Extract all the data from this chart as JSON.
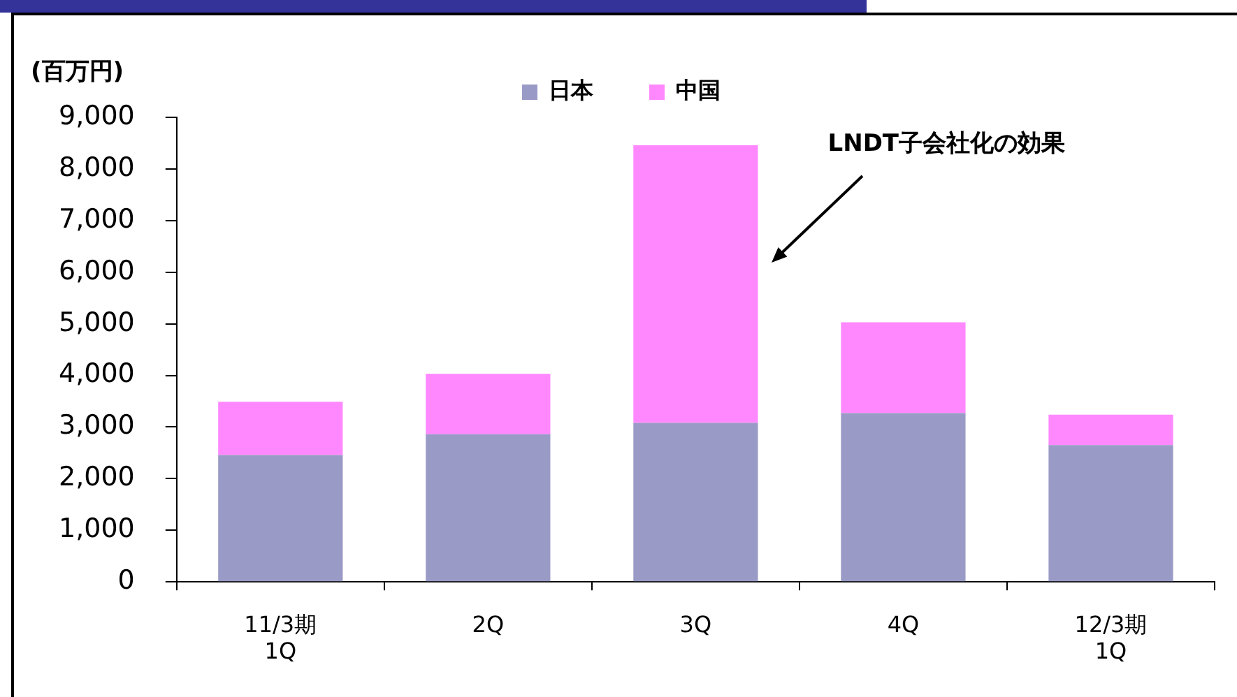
{
  "chart_data": {
    "type": "bar",
    "stacked": true,
    "ylabel": "(百万円)",
    "categories": [
      "11/3期\n1Q",
      "2Q",
      "3Q",
      "4Q",
      "12/3期\n1Q"
    ],
    "series": [
      {
        "name": "日本",
        "color": "#9a9ac6",
        "values": [
          2460,
          2860,
          3080,
          3270,
          2650
        ]
      },
      {
        "name": "中国",
        "color": "#ff88ff",
        "values": [
          1030,
          1170,
          5380,
          1760,
          590
        ]
      }
    ],
    "ylim": [
      0,
      9000
    ],
    "yticks": [
      0,
      {
        "value": 1000,
        "label": "1,000"
      },
      {
        "value": 2000,
        "label": "2,000"
      },
      {
        "value": 3000,
        "label": "3,000"
      },
      {
        "value": 4000,
        "label": "4,000"
      },
      {
        "value": 5000,
        "label": "5,000"
      },
      {
        "value": 6000,
        "label": "6,000"
      },
      {
        "value": 7000,
        "label": "7,000"
      },
      {
        "value": 8000,
        "label": "8,000"
      },
      {
        "value": 9000,
        "label": "9,000"
      }
    ],
    "legend": "top",
    "annotations": [
      "LNDT子会社化の効果"
    ]
  }
}
